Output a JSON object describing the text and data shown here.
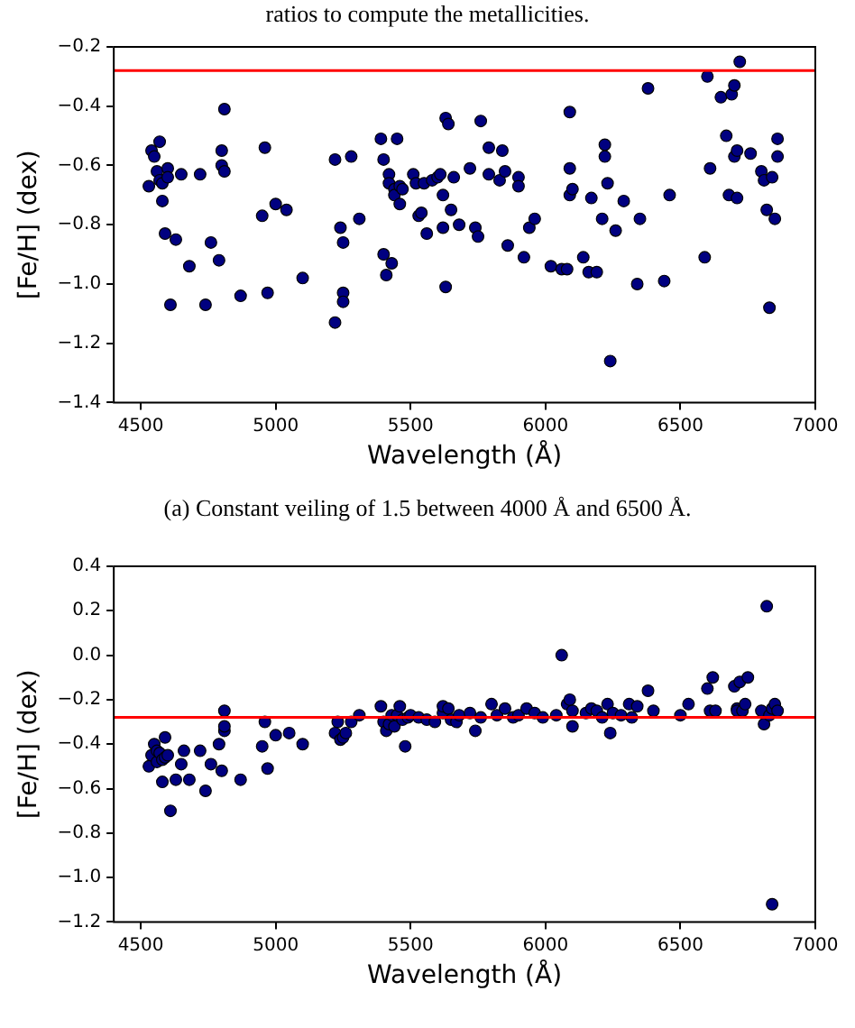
{
  "chart_data": [
    {
      "type": "scatter",
      "xlabel": "Wavelength (Å)",
      "ylabel": "[Fe/H] (dex)",
      "xlim": [
        4400,
        7000
      ],
      "ylim": [
        -1.4,
        -0.2
      ],
      "xticks": [
        4500,
        5000,
        5500,
        6000,
        6500,
        7000
      ],
      "yticks": [
        {
          "value": -1.4,
          "label": "−1.4"
        },
        {
          "value": -1.2,
          "label": "−1.2"
        },
        {
          "value": -1.0,
          "label": "−1.0"
        },
        {
          "value": -0.8,
          "label": "−0.8"
        },
        {
          "value": -0.6,
          "label": "−0.6"
        },
        {
          "value": -0.4,
          "label": "−0.4"
        },
        {
          "value": -0.2,
          "label": "−0.2"
        }
      ],
      "grid": false,
      "legend": false,
      "marker": "circle",
      "ref_lines": [
        {
          "axis": "y",
          "value": -0.28,
          "color": "#ff0000"
        }
      ],
      "annotations": [
        "ratios to compute the metallicities.",
        "(a) Constant veiling of 1.5 between 4000 Å and 6500 Å."
      ],
      "series": [
        {
          "color": "#000080",
          "x": [
            4530,
            4540,
            4550,
            4560,
            4570,
            4570,
            4580,
            4580,
            4590,
            4600,
            4600,
            4610,
            4630,
            4650,
            4680,
            4720,
            4740,
            4760,
            4790,
            4800,
            4800,
            4810,
            4810,
            4870,
            4950,
            4960,
            4970,
            5000,
            5040,
            5100,
            5220,
            5220,
            5240,
            5250,
            5250,
            5250,
            5280,
            5310,
            5390,
            5400,
            5400,
            5410,
            5420,
            5420,
            5430,
            5440,
            5440,
            5450,
            5460,
            5470,
            5460,
            5510,
            5520,
            5530,
            5540,
            5550,
            5560,
            5580,
            5600,
            5610,
            5620,
            5620,
            5630,
            5630,
            5640,
            5650,
            5660,
            5680,
            5720,
            5740,
            5750,
            5760,
            5790,
            5790,
            5830,
            5840,
            5850,
            5860,
            5900,
            5900,
            5920,
            5940,
            5960,
            6020,
            6060,
            6080,
            6090,
            6090,
            6090,
            6100,
            6140,
            6160,
            6170,
            6190,
            6210,
            6220,
            6220,
            6230,
            6240,
            6260,
            6290,
            6340,
            6350,
            6380,
            6440,
            6460,
            6590,
            6600,
            6610,
            6650,
            6670,
            6680,
            6690,
            6700,
            6700,
            6710,
            6710,
            6720,
            6760,
            6800,
            6810,
            6820,
            6830,
            6840,
            6860,
            6860,
            6850
          ],
          "values": [
            -0.67,
            -0.55,
            -0.57,
            -0.62,
            -0.52,
            -0.65,
            -0.66,
            -0.72,
            -0.83,
            -0.61,
            -0.64,
            -1.07,
            -0.85,
            -0.63,
            -0.94,
            -0.63,
            -1.07,
            -0.86,
            -0.92,
            -0.6,
            -0.55,
            -0.41,
            -0.62,
            -1.04,
            -0.77,
            -0.54,
            -1.03,
            -0.73,
            -0.75,
            -0.98,
            -1.13,
            -0.58,
            -0.81,
            -1.03,
            -1.06,
            -0.86,
            -0.57,
            -0.78,
            -0.51,
            -0.58,
            -0.9,
            -0.97,
            -0.63,
            -0.66,
            -0.93,
            -0.68,
            -0.7,
            -0.51,
            -0.67,
            -0.68,
            -0.73,
            -0.63,
            -0.66,
            -0.77,
            -0.76,
            -0.66,
            -0.83,
            -0.65,
            -0.64,
            -0.63,
            -0.81,
            -0.7,
            -1.01,
            -0.44,
            -0.46,
            -0.75,
            -0.64,
            -0.8,
            -0.61,
            -0.81,
            -0.84,
            -0.45,
            -0.54,
            -0.63,
            -0.65,
            -0.55,
            -0.62,
            -0.87,
            -0.64,
            -0.67,
            -0.91,
            -0.81,
            -0.78,
            -0.94,
            -0.95,
            -0.95,
            -0.42,
            -0.61,
            -0.7,
            -0.68,
            -0.91,
            -0.96,
            -0.71,
            -0.96,
            -0.78,
            -0.53,
            -0.57,
            -0.66,
            -1.26,
            -0.82,
            -0.72,
            -1.0,
            -0.78,
            -0.34,
            -0.99,
            -0.7,
            -0.91,
            -0.3,
            -0.61,
            -0.37,
            -0.5,
            -0.7,
            -0.36,
            -0.33,
            -0.57,
            -0.71,
            -0.55,
            -0.25,
            -0.56,
            -0.62,
            -0.65,
            -0.75,
            -1.08,
            -0.64,
            -0.51,
            -0.57,
            -0.78
          ]
        }
      ]
    },
    {
      "type": "scatter",
      "xlabel": "Wavelength (Å)",
      "ylabel": "[Fe/H] (dex)",
      "xlim": [
        4400,
        7000
      ],
      "ylim": [
        -1.2,
        0.4
      ],
      "xticks": [
        4500,
        5000,
        5500,
        6000,
        6500,
        7000
      ],
      "yticks": [
        {
          "value": -1.2,
          "label": "−1.2"
        },
        {
          "value": -1.0,
          "label": "−1.0"
        },
        {
          "value": -0.8,
          "label": "−0.8"
        },
        {
          "value": -0.6,
          "label": "−0.6"
        },
        {
          "value": -0.4,
          "label": "−0.4"
        },
        {
          "value": -0.2,
          "label": "−0.2"
        },
        {
          "value": 0.0,
          "label": "0.0"
        },
        {
          "value": 0.2,
          "label": "0.2"
        },
        {
          "value": 0.4,
          "label": "0.4"
        }
      ],
      "grid": false,
      "legend": false,
      "marker": "circle",
      "ref_lines": [
        {
          "axis": "y",
          "value": -0.28,
          "color": "#ff0000"
        }
      ],
      "series": [
        {
          "color": "#000080",
          "x": [
            4530,
            4540,
            4550,
            4560,
            4560,
            4570,
            4580,
            4580,
            4590,
            4590,
            4600,
            4610,
            4630,
            4650,
            4660,
            4680,
            4720,
            4740,
            4760,
            4790,
            4800,
            4810,
            4810,
            4810,
            4870,
            4950,
            4960,
            4970,
            5000,
            5050,
            5100,
            5220,
            5230,
            5240,
            5250,
            5260,
            5280,
            5310,
            5390,
            5400,
            5410,
            5420,
            5430,
            5440,
            5450,
            5460,
            5470,
            5480,
            5490,
            5500,
            5530,
            5560,
            5590,
            5620,
            5620,
            5640,
            5650,
            5670,
            5680,
            5720,
            5740,
            5760,
            5800,
            5820,
            5850,
            5880,
            5900,
            5930,
            5960,
            5990,
            6040,
            6060,
            6080,
            6090,
            6100,
            6100,
            6150,
            6170,
            6190,
            6210,
            6230,
            6240,
            6250,
            6280,
            6310,
            6320,
            6340,
            6380,
            6400,
            6500,
            6530,
            6600,
            6610,
            6620,
            6630,
            6700,
            6710,
            6710,
            6720,
            6730,
            6740,
            6750,
            6800,
            6810,
            6820,
            6830,
            6840,
            6840,
            6850,
            6860
          ],
          "values": [
            -0.5,
            -0.45,
            -0.4,
            -0.43,
            -0.48,
            -0.44,
            -0.57,
            -0.47,
            -0.37,
            -0.46,
            -0.45,
            -0.7,
            -0.56,
            -0.49,
            -0.43,
            -0.56,
            -0.43,
            -0.61,
            -0.49,
            -0.4,
            -0.52,
            -0.34,
            -0.32,
            -0.25,
            -0.56,
            -0.41,
            -0.3,
            -0.51,
            -0.36,
            -0.35,
            -0.4,
            -0.35,
            -0.3,
            -0.38,
            -0.37,
            -0.35,
            -0.3,
            -0.27,
            -0.23,
            -0.3,
            -0.34,
            -0.31,
            -0.27,
            -0.32,
            -0.27,
            -0.23,
            -0.29,
            -0.41,
            -0.28,
            -0.27,
            -0.28,
            -0.29,
            -0.3,
            -0.26,
            -0.23,
            -0.24,
            -0.29,
            -0.3,
            -0.27,
            -0.26,
            -0.34,
            -0.28,
            -0.22,
            -0.27,
            -0.24,
            -0.28,
            -0.27,
            -0.24,
            -0.26,
            -0.28,
            -0.27,
            0.0,
            -0.22,
            -0.2,
            -0.25,
            -0.32,
            -0.26,
            -0.24,
            -0.25,
            -0.28,
            -0.22,
            -0.35,
            -0.26,
            -0.27,
            -0.22,
            -0.28,
            -0.23,
            -0.16,
            -0.25,
            -0.27,
            -0.22,
            -0.15,
            -0.25,
            -0.1,
            -0.25,
            -0.14,
            -0.24,
            -0.25,
            -0.12,
            -0.25,
            -0.22,
            -0.1,
            -0.25,
            -0.31,
            0.22,
            -0.27,
            -1.12,
            -0.24,
            -0.22,
            -0.25
          ]
        }
      ]
    }
  ]
}
